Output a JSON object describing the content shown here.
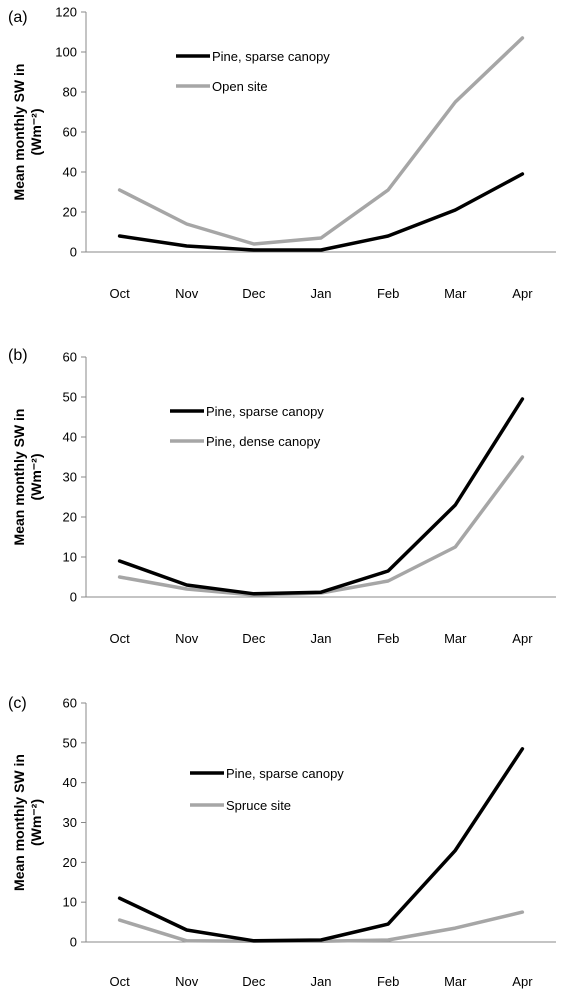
{
  "chart_data": [
    {
      "type": "line",
      "panel_label": "(a)",
      "ylabel_line1": "Mean monthly SW in",
      "ylabel_line2": "(Wm⁻²)",
      "ylim": [
        0,
        120
      ],
      "yticks": [
        0,
        20,
        40,
        60,
        80,
        100,
        120
      ],
      "categories": [
        "Oct",
        "Nov",
        "Dec",
        "Jan",
        "Feb",
        "Mar",
        "Apr"
      ],
      "legend_position": "top-left",
      "series": [
        {
          "name": "Pine, sparse canopy",
          "color": "#000000",
          "values": [
            8,
            3,
            1,
            1,
            8,
            21,
            39
          ]
        },
        {
          "name": "Open site",
          "color": "#a6a6a6",
          "values": [
            31,
            14,
            4,
            7,
            31,
            75,
            107
          ]
        }
      ]
    },
    {
      "type": "line",
      "panel_label": "(b)",
      "ylabel_line1": "Mean monthly SW in",
      "ylabel_line2": "(Wm⁻²)",
      "ylim": [
        0,
        60
      ],
      "yticks": [
        0,
        10,
        20,
        30,
        40,
        50,
        60
      ],
      "categories": [
        "Oct",
        "Nov",
        "Dec",
        "Jan",
        "Feb",
        "Mar",
        "Apr"
      ],
      "legend_position": "top-left",
      "series": [
        {
          "name": "Pine, sparse canopy",
          "color": "#000000",
          "values": [
            9,
            3,
            0.8,
            1.2,
            6.5,
            23,
            49.5
          ]
        },
        {
          "name": "Pine, dense canopy",
          "color": "#a6a6a6",
          "values": [
            5,
            2,
            0.5,
            1,
            4,
            12.5,
            35
          ]
        }
      ]
    },
    {
      "type": "line",
      "panel_label": "(c)",
      "ylabel_line1": "Mean monthly SW in",
      "ylabel_line2": "(Wm⁻²)",
      "ylim": [
        0,
        60
      ],
      "yticks": [
        0,
        10,
        20,
        30,
        40,
        50,
        60
      ],
      "categories": [
        "Oct",
        "Nov",
        "Dec",
        "Jan",
        "Feb",
        "Mar",
        "Apr"
      ],
      "legend_position": "top-left",
      "series": [
        {
          "name": "Pine, sparse canopy",
          "color": "#000000",
          "values": [
            11,
            3,
            0.3,
            0.5,
            4.5,
            23,
            48.5
          ]
        },
        {
          "name": "Spruce site",
          "color": "#a6a6a6",
          "values": [
            5.5,
            0.3,
            0.2,
            0.2,
            0.5,
            3.5,
            7.5
          ]
        }
      ]
    }
  ]
}
